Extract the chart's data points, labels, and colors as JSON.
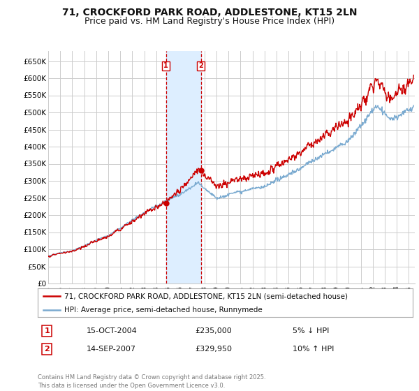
{
  "title": "71, CROCKFORD PARK ROAD, ADDLESTONE, KT15 2LN",
  "subtitle": "Price paid vs. HM Land Registry's House Price Index (HPI)",
  "ylim": [
    0,
    680000
  ],
  "yticks": [
    0,
    50000,
    100000,
    150000,
    200000,
    250000,
    300000,
    350000,
    400000,
    450000,
    500000,
    550000,
    600000,
    650000
  ],
  "ytick_labels": [
    "£0",
    "£50K",
    "£100K",
    "£150K",
    "£200K",
    "£250K",
    "£300K",
    "£350K",
    "£400K",
    "£450K",
    "£500K",
    "£550K",
    "£600K",
    "£650K"
  ],
  "xlim_start": 1995.0,
  "xlim_end": 2025.5,
  "transaction1_x": 2004.79,
  "transaction1_y": 235000,
  "transaction1_label": "1",
  "transaction2_x": 2007.71,
  "transaction2_y": 329950,
  "transaction2_label": "2",
  "line_color_property": "#cc0000",
  "line_color_hpi": "#7aaad0",
  "shade_color": "#ddeeff",
  "vline_color": "#cc0000",
  "background_color": "#ffffff",
  "grid_color": "#cccccc",
  "legend_label_property": "71, CROCKFORD PARK ROAD, ADDLESTONE, KT15 2LN (semi-detached house)",
  "legend_label_hpi": "HPI: Average price, semi-detached house, Runnymede",
  "table_row1": [
    "1",
    "15-OCT-2004",
    "£235,000",
    "5% ↓ HPI"
  ],
  "table_row2": [
    "2",
    "14-SEP-2007",
    "£329,950",
    "10% ↑ HPI"
  ],
  "footnote": "Contains HM Land Registry data © Crown copyright and database right 2025.\nThis data is licensed under the Open Government Licence v3.0.",
  "title_fontsize": 10,
  "subtitle_fontsize": 9,
  "tick_fontsize": 7.5,
  "legend_fontsize": 8
}
